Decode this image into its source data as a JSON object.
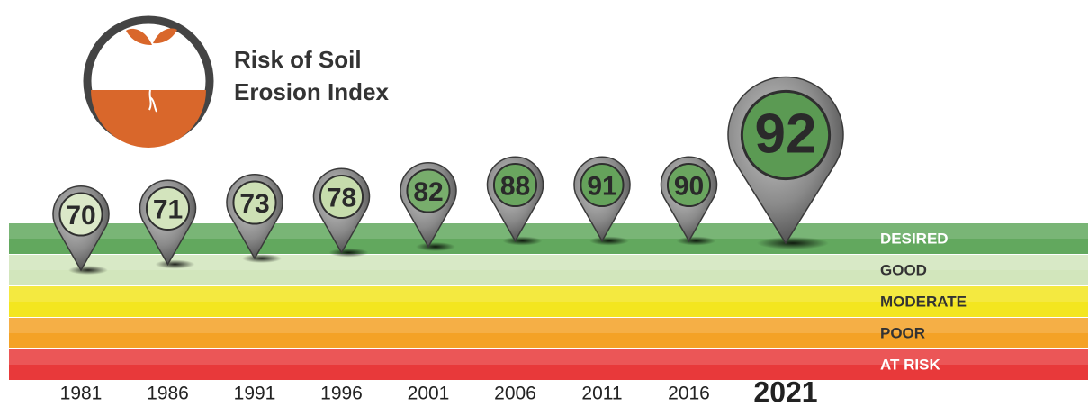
{
  "chart_data": {
    "type": "pin",
    "title_lines": [
      "Risk of Soil",
      "Erosion Index"
    ],
    "categories": [
      "1981",
      "1986",
      "1991",
      "1996",
      "2001",
      "2006",
      "2011",
      "2016",
      "2021"
    ],
    "values": [
      70,
      71,
      73,
      78,
      82,
      88,
      91,
      90,
      92
    ],
    "pin_colors": [
      "#dbe8c8",
      "#d3e4bd",
      "#cde0b5",
      "#c6dcac",
      "#78ad6c",
      "#6aa55f",
      "#65a25b",
      "#6aa55f",
      "#5b9a53"
    ],
    "highlight": 8,
    "bands": [
      {
        "name": "DESIRED",
        "color": "#62a85e",
        "text_color": "#ffffff"
      },
      {
        "name": "GOOD",
        "color": "#d2e6bc",
        "text_color": "#333333"
      },
      {
        "name": "MODERATE",
        "color": "#f3e61f",
        "text_color": "#333333"
      },
      {
        "name": "POOR",
        "color": "#f4a226",
        "text_color": "#333333"
      },
      {
        "name": "AT RISK",
        "color": "#e8393a",
        "text_color": "#ffffff"
      }
    ]
  }
}
